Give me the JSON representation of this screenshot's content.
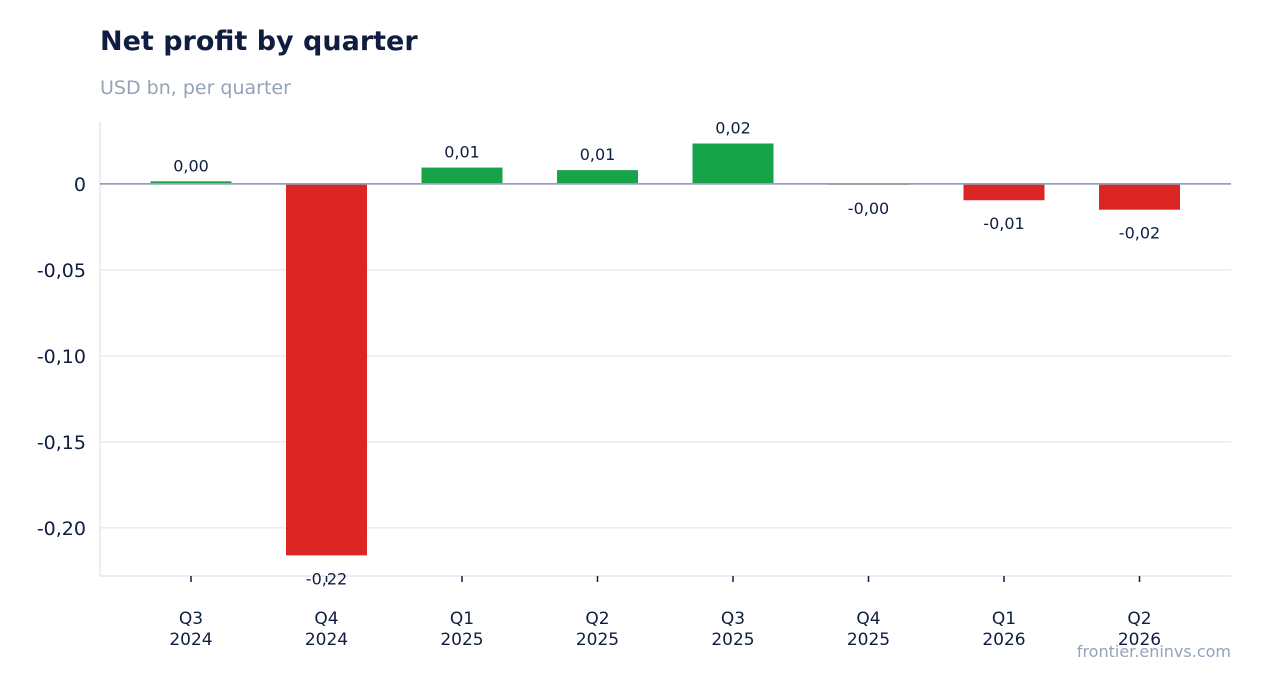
{
  "header": {
    "title": "Net profit by quarter",
    "subtitle": "USD bn, per quarter"
  },
  "footer": {
    "source": "frontier.eninvs.com"
  },
  "colors": {
    "positive": "#16a34a",
    "negative": "#dc2626",
    "zero_line": "#94a3b8",
    "grid": "#e2e8f0"
  },
  "chart_data": {
    "type": "bar",
    "title": "Net profit by quarter",
    "subtitle": "USD bn, per quarter",
    "xlabel": "",
    "ylabel": "",
    "categories": [
      [
        "Q3",
        "2024"
      ],
      [
        "Q4",
        "2024"
      ],
      [
        "Q1",
        "2025"
      ],
      [
        "Q2",
        "2025"
      ],
      [
        "Q3",
        "2025"
      ],
      [
        "Q4",
        "2025"
      ],
      [
        "Q1",
        "2026"
      ],
      [
        "Q2",
        "2026"
      ]
    ],
    "values": [
      0.0015,
      -0.216,
      0.0095,
      0.008,
      0.0235,
      -0.0005,
      -0.0095,
      -0.015
    ],
    "data_labels": [
      "0,00",
      "-0,22",
      "0,01",
      "0,01",
      "0,02",
      "-0,00",
      "-0,01",
      "-0,02"
    ],
    "yticks": [
      0,
      -0.05,
      -0.1,
      -0.15,
      -0.2
    ],
    "ytick_labels": [
      "0",
      "-0,05",
      "-0,10",
      "-0,15",
      "-0,20"
    ],
    "ylim": [
      -0.228,
      0.036
    ],
    "grid": true,
    "legend": "none"
  }
}
